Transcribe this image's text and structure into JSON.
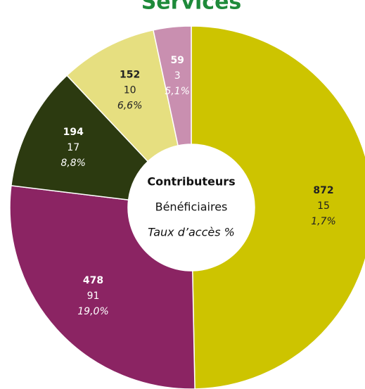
{
  "chart_data": {
    "type": "donut",
    "title": "Services",
    "series": [
      {
        "name": "Contributeurs",
        "values": [
          872,
          478,
          194,
          152,
          59
        ]
      },
      {
        "name": "Bénéficiaires",
        "values": [
          15,
          91,
          17,
          10,
          3
        ]
      },
      {
        "name": "Taux d’accès %",
        "values": [
          1.7,
          19.0,
          8.8,
          6.6,
          5.1
        ],
        "value_labels": [
          "1,7%",
          "19,0%",
          "8,8%",
          "6,6%",
          "5,1%"
        ]
      }
    ],
    "colors": [
      "#cdc400",
      "#8b2463",
      "#2c3a10",
      "#e6df80",
      "#c98fb0"
    ]
  }
}
